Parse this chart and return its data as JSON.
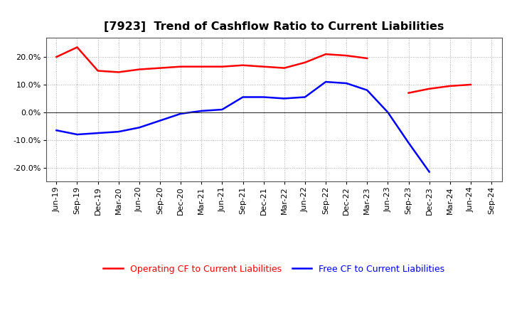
{
  "title": "[7923]  Trend of Cashflow Ratio to Current Liabilities",
  "x_labels": [
    "Jun-19",
    "Sep-19",
    "Dec-19",
    "Mar-20",
    "Jun-20",
    "Sep-20",
    "Dec-20",
    "Mar-21",
    "Jun-21",
    "Sep-21",
    "Dec-21",
    "Mar-22",
    "Jun-22",
    "Sep-22",
    "Dec-22",
    "Mar-23",
    "Jun-23",
    "Sep-23",
    "Dec-23",
    "Mar-24",
    "Jun-24",
    "Sep-24"
  ],
  "operating_cf": [
    20.0,
    23.5,
    15.0,
    14.5,
    15.5,
    16.0,
    16.5,
    16.5,
    16.5,
    17.0,
    16.5,
    16.0,
    18.0,
    21.0,
    20.5,
    19.5,
    null,
    7.0,
    8.5,
    9.5,
    10.0,
    null
  ],
  "free_cf": [
    -6.5,
    -8.0,
    -7.5,
    -7.0,
    -5.5,
    -3.0,
    -0.5,
    0.5,
    1.0,
    5.5,
    5.5,
    5.0,
    5.5,
    11.0,
    10.5,
    8.0,
    0.0,
    -11.0,
    -21.5,
    null,
    null,
    null
  ],
  "operating_color": "#ff0000",
  "free_color": "#0000ff",
  "ylim": [
    -25,
    27
  ],
  "yticks": [
    -20,
    -10,
    0,
    10,
    20
  ],
  "background_color": "#ffffff",
  "plot_bg_color": "#ffffff",
  "grid_color": "#aaaaaa",
  "legend_labels": [
    "Operating CF to Current Liabilities",
    "Free CF to Current Liabilities"
  ],
  "title_fontsize": 11.5,
  "tick_fontsize": 8,
  "legend_fontsize": 9,
  "line_width": 1.8
}
